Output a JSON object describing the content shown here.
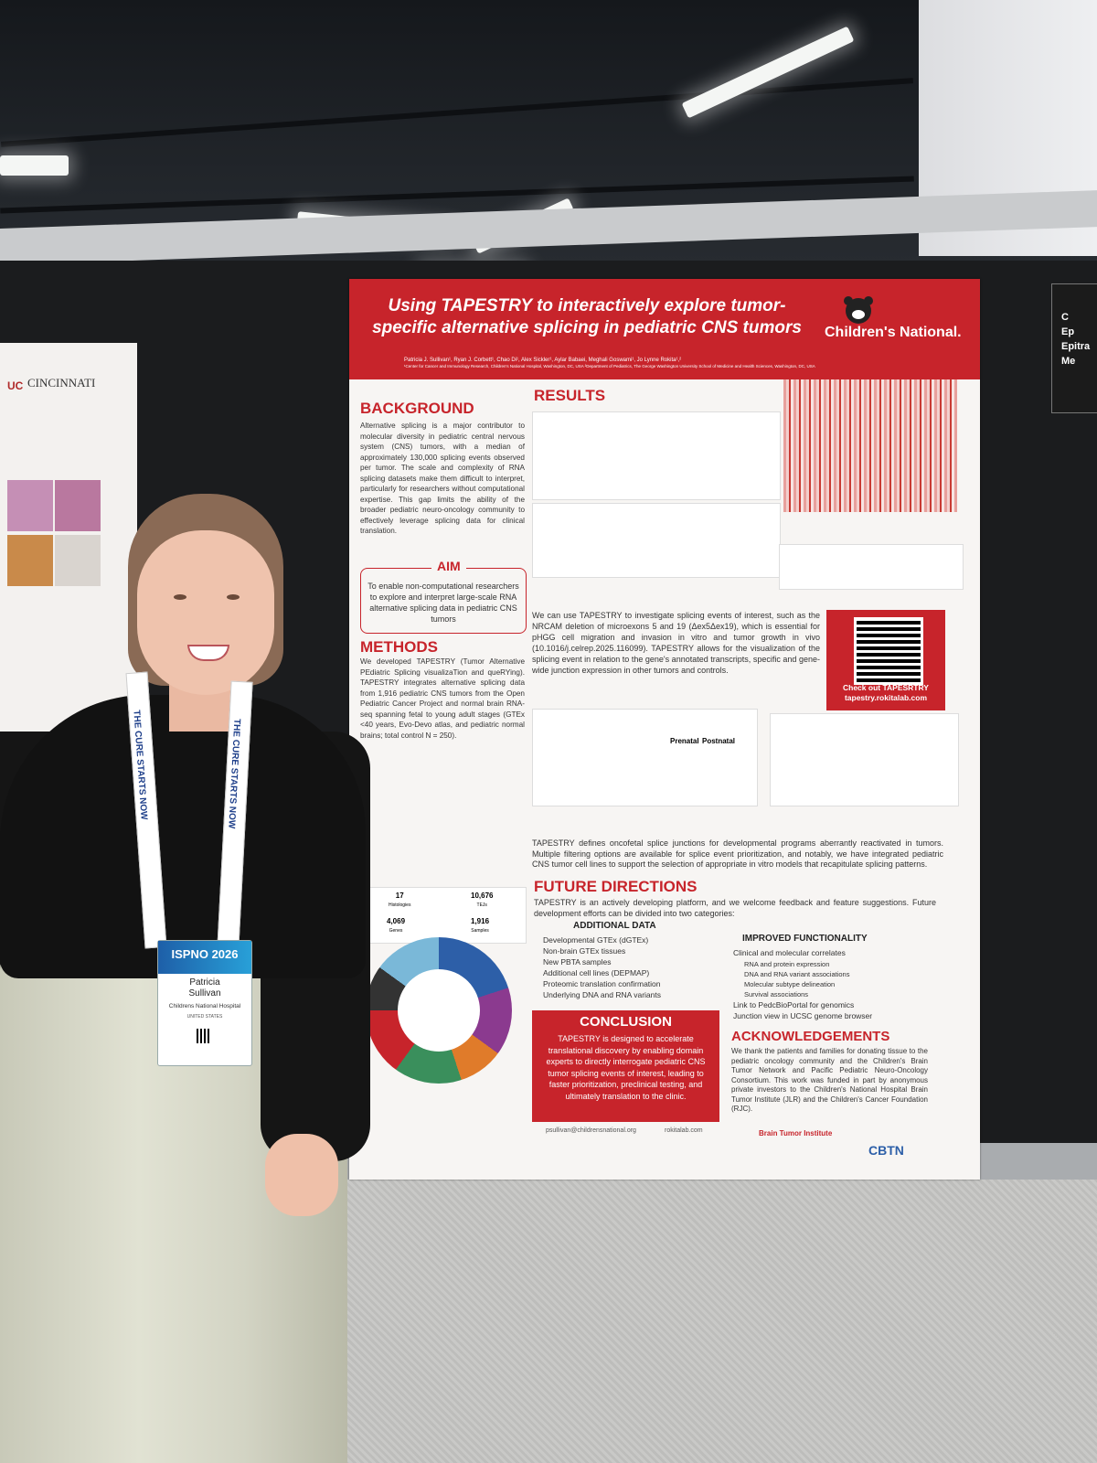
{
  "scene": {
    "poster": {
      "title": "Using TAPESTRY to interactively explore tumor-specific alternative splicing in pediatric CNS tumors",
      "authors": "Patricia J. Sullivan¹, Ryan J. Corbett¹, Chao Di¹, Alex Sickler¹, Aylar Babaei, Meghali Goswami¹, Jo Lynne Rokita¹,²",
      "affiliations": "¹Center for Cancer and Immunology Research, Children's National Hospital, Washington, DC, USA ²Department of Pediatrics, The George Washington University School of Medicine and Health Sciences, Washington, DC, USA",
      "brand": "Children's National.",
      "background": {
        "heading": "BACKGROUND",
        "text": "Alternative splicing is a major contributor to molecular diversity in pediatric central nervous system (CNS) tumors, with a median of approximately 130,000 splicing events observed per tumor. The scale and complexity of RNA splicing datasets make them difficult to interpret, particularly for researchers without computational expertise. This gap limits the ability of the broader pediatric neuro-oncology community to effectively leverage splicing data for clinical translation."
      },
      "aim": {
        "heading": "AIM",
        "text": "To enable non-computational researchers to explore and interpret large-scale RNA alternative splicing data in pediatric CNS tumors"
      },
      "methods": {
        "heading": "METHODS",
        "text": "We developed TAPESTRY (Tumor Alternative PEdiatric Splicing visualizaTion and queRYing). TAPESTRY integrates alternative splicing data from 1,916 pediatric CNS tumors from the Open Pediatric Cancer Project and normal brain RNA-seq spanning fetal to young adult stages (GTEx <40 years, Evo-Devo atlas, and pediatric normal brains; total control N = 250).",
        "stats": [
          {
            "value": "17",
            "label": "Histologies"
          },
          {
            "value": "10,676",
            "label": "TEJs"
          },
          {
            "value": "4,069",
            "label": "Genes"
          },
          {
            "value": "1,916",
            "label": "Samples"
          }
        ]
      },
      "results": {
        "heading": "RESULTS",
        "text": "We can use TAPESTRY to investigate splicing events of interest, such as the NRCAM deletion of microexons 5 and 19 (Δex5Δex19), which is essential for pHGG cell migration and invasion in vitro and tumor growth in vivo (10.1016/j.celrep.2025.116099). TAPESTRY allows for the visualization of the splicing event in relation to the gene's annotated transcripts, specific and gene-wide junction expression in other tumors and controls.",
        "text2": "TAPESTRY defines oncofetal splice junctions for developmental programs aberrantly reactivated in tumors. Multiple filtering options are available for splice event prioritization, and notably, we have integrated pediatric CNS tumor cell lines to support the selection of appropriate in vitro models that recapitulate splicing patterns.",
        "qr_label": "Check out TAPESRTRY",
        "qr_url": "tapestry.rokitalab.com",
        "prenatal": "Prenatal",
        "postnatal": "Postnatal"
      },
      "future": {
        "heading": "FUTURE DIRECTIONS",
        "text": "TAPESTRY is an actively developing platform, and we welcome feedback and feature suggestions. Future development efforts can be divided into two categories:",
        "data_heading": "ADDITIONAL DATA",
        "data_items": [
          "Developmental GTEx (dGTEx)",
          "Non-brain GTEx tissues",
          "New PBTA samples",
          "Additional cell lines (DEPMAP)",
          "Proteomic translation confirmation",
          "Underlying DNA and RNA variants"
        ],
        "func_heading": "IMPROVED FUNCTIONALITY",
        "func_items": [
          "Clinical and molecular correlates",
          "RNA and protein expression",
          "DNA and RNA variant associations",
          "Molecular subtype delineation",
          "Survival associations",
          "Link to PedcBioPortal for genomics",
          "Junction view in UCSC genome browser"
        ]
      },
      "conclusion": {
        "heading": "CONCLUSION",
        "text": "TAPESTRY is designed to accelerate translational discovery by enabling domain experts to directly interrogate pediatric CNS tumor splicing events of interest, leading to faster prioritization, preclinical testing, and ultimately translation to the clinic."
      },
      "acknowledgements": {
        "heading": "ACKNOWLEDGEMENTS",
        "text": "We thank the patients and families for donating tissue to the pediatric oncology community and the Children's Brain Tumor Network and Pacific Pediatric Neuro-Oncology Consortium. This work was funded in part by anonymous private investors to the Children's National Hospital Brain Tumor Institute (JLR) and the Children's Cancer Foundation (RJC)."
      },
      "footer": {
        "email": "psullivan@childrensnational.org",
        "site": "rokitalab.com",
        "logo1": "Brain Tumor Institute",
        "logo2": "CBTN"
      }
    },
    "left_poster": {
      "university": "CINCINNATI"
    },
    "right_card": {
      "lines": [
        "C",
        "Ep",
        "Epitra",
        "Me"
      ]
    },
    "lanyard": "THE CURE STARTS NOW",
    "badge": {
      "event": "ISPNO 2026",
      "first_name": "Patricia",
      "last_name": "Sullivan",
      "organization": "Childrens National Hospital",
      "country": "UNITED STATES"
    },
    "colors": {
      "poster_red": "#c7242b",
      "board": "#1b1c1e",
      "skirt": "#d6d7c8"
    }
  }
}
